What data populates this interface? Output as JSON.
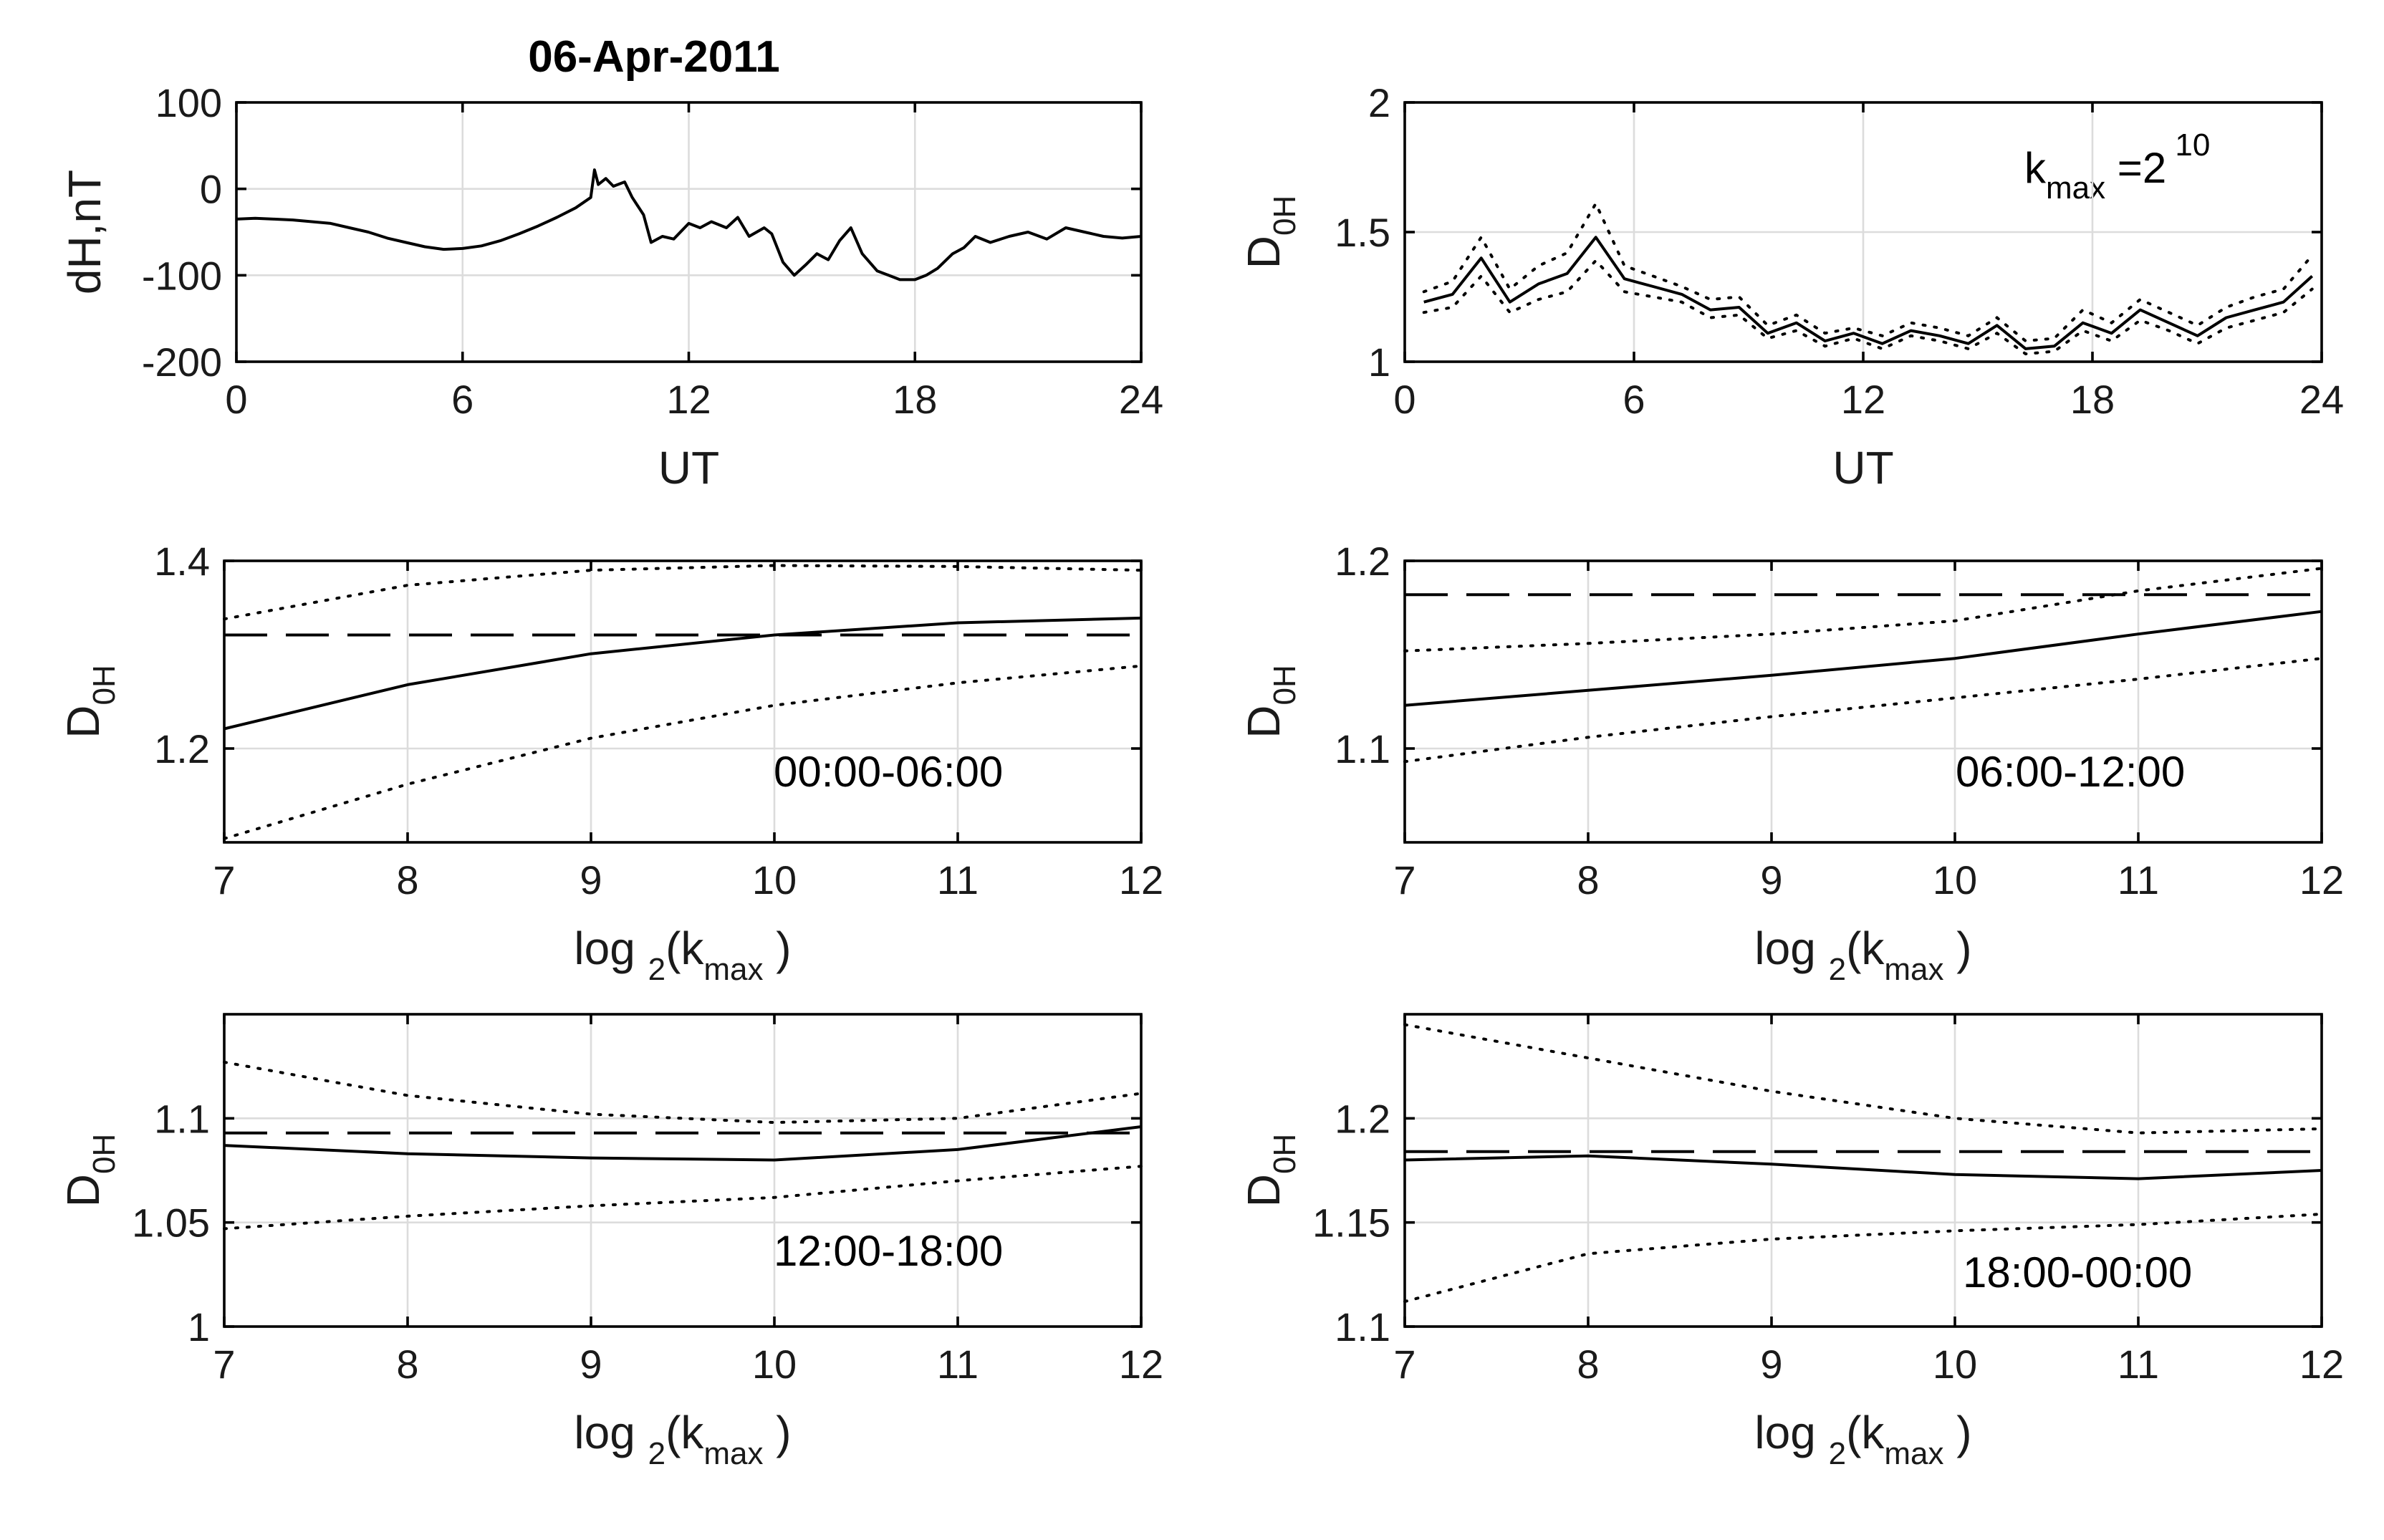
{
  "figure_title": "06-Apr-2011",
  "chart_data": [
    {
      "id": "p1",
      "type": "line",
      "title": "06-Apr-2011",
      "xlabel": "UT",
      "ylabel": "dH,nT",
      "xlim": [
        0,
        24
      ],
      "ylim": [
        -200,
        100
      ],
      "xticks": [
        0,
        6,
        12,
        18,
        24
      ],
      "yticks": [
        -200,
        -100,
        0,
        100
      ],
      "grid": true,
      "series": [
        {
          "name": "dH",
          "style": "solid",
          "x": [
            0,
            0.5,
            1,
            1.5,
            2,
            2.5,
            3,
            3.5,
            4,
            4.5,
            5,
            5.5,
            6,
            6.5,
            7,
            7.5,
            8,
            8.5,
            9,
            9.4,
            9.5,
            9.6,
            9.8,
            10,
            10.3,
            10.5,
            10.8,
            11,
            11.3,
            11.6,
            12,
            12.3,
            12.6,
            13,
            13.3,
            13.6,
            14,
            14.2,
            14.5,
            14.8,
            15.1,
            15.4,
            15.7,
            16,
            16.3,
            16.6,
            17,
            17.3,
            17.6,
            18,
            18.3,
            18.6,
            19,
            19.3,
            19.6,
            20,
            20.5,
            21,
            21.5,
            22,
            22.5,
            23,
            23.5,
            24
          ],
          "y": [
            -35,
            -34,
            -35,
            -36,
            -38,
            -40,
            -45,
            -50,
            -57,
            -62,
            -67,
            -70,
            -69,
            -66,
            -60,
            -52,
            -43,
            -33,
            -22,
            -10,
            22,
            5,
            12,
            3,
            8,
            -10,
            -30,
            -62,
            -55,
            -58,
            -40,
            -45,
            -38,
            -45,
            -33,
            -55,
            -45,
            -52,
            -85,
            -100,
            -88,
            -75,
            -82,
            -60,
            -45,
            -75,
            -95,
            -100,
            -105,
            -105,
            -100,
            -92,
            -75,
            -68,
            -55,
            -62,
            -55,
            -50,
            -58,
            -45,
            -50,
            -55,
            -57,
            -55
          ]
        }
      ]
    },
    {
      "id": "p2",
      "type": "line",
      "xlabel": "UT",
      "ylabel": "D0H",
      "annotation": "kmax =2 10",
      "xlim": [
        0,
        24
      ],
      "ylim": [
        1,
        2
      ],
      "xticks": [
        0,
        6,
        12,
        18,
        24
      ],
      "yticks": [
        1,
        1.5,
        2
      ],
      "grid": true,
      "series": [
        {
          "name": "D0H",
          "style": "solid",
          "x": [
            0.5,
            1.25,
            2,
            2.75,
            3.5,
            4.25,
            5,
            5.75,
            6.5,
            7.25,
            8,
            8.75,
            9.5,
            10.25,
            11,
            11.75,
            12.5,
            13.25,
            14,
            14.75,
            15.5,
            16.25,
            17,
            17.75,
            18.5,
            19.25,
            20,
            20.75,
            21.5,
            22.25,
            23,
            23.75
          ],
          "y": [
            1.23,
            1.26,
            1.4,
            1.23,
            1.3,
            1.34,
            1.48,
            1.32,
            1.29,
            1.26,
            1.2,
            1.21,
            1.11,
            1.15,
            1.08,
            1.11,
            1.07,
            1.12,
            1.1,
            1.07,
            1.14,
            1.05,
            1.06,
            1.15,
            1.11,
            1.2,
            1.15,
            1.1,
            1.17,
            1.2,
            1.23,
            1.33
          ]
        },
        {
          "name": "upper",
          "style": "dotted",
          "x": [
            0.5,
            1.25,
            2,
            2.75,
            3.5,
            4.25,
            5,
            5.75,
            6.5,
            7.25,
            8,
            8.75,
            9.5,
            10.25,
            11,
            11.75,
            12.5,
            13.25,
            14,
            14.75,
            15.5,
            16.25,
            17,
            17.75,
            18.5,
            19.25,
            20,
            20.75,
            21.5,
            22.25,
            23,
            23.75
          ],
          "y": [
            1.27,
            1.31,
            1.48,
            1.28,
            1.37,
            1.42,
            1.61,
            1.37,
            1.33,
            1.29,
            1.24,
            1.25,
            1.14,
            1.18,
            1.11,
            1.13,
            1.1,
            1.15,
            1.13,
            1.1,
            1.17,
            1.08,
            1.09,
            1.2,
            1.15,
            1.24,
            1.19,
            1.14,
            1.21,
            1.25,
            1.28,
            1.41
          ]
        },
        {
          "name": "lower",
          "style": "dotted",
          "x": [
            0.5,
            1.25,
            2,
            2.75,
            3.5,
            4.25,
            5,
            5.75,
            6.5,
            7.25,
            8,
            8.75,
            9.5,
            10.25,
            11,
            11.75,
            12.5,
            13.25,
            14,
            14.75,
            15.5,
            16.25,
            17,
            17.75,
            18.5,
            19.25,
            20,
            20.75,
            21.5,
            22.25,
            23,
            23.75
          ],
          "y": [
            1.19,
            1.21,
            1.33,
            1.19,
            1.24,
            1.27,
            1.39,
            1.27,
            1.25,
            1.23,
            1.17,
            1.18,
            1.09,
            1.12,
            1.06,
            1.09,
            1.05,
            1.1,
            1.08,
            1.05,
            1.11,
            1.03,
            1.04,
            1.12,
            1.08,
            1.16,
            1.12,
            1.07,
            1.13,
            1.16,
            1.19,
            1.28
          ]
        }
      ]
    },
    {
      "id": "p3",
      "type": "line",
      "xlabel": "log2(kmax )",
      "ylabel": "D0H",
      "annotation": "00:00-06:00",
      "xlim": [
        7,
        12
      ],
      "ylim": [
        1.1,
        1.4
      ],
      "xticks": [
        7,
        8,
        9,
        10,
        11,
        12
      ],
      "yticks": [
        1.2,
        1.4
      ],
      "grid": true,
      "series": [
        {
          "name": "D0H",
          "style": "solid",
          "x": [
            7,
            8,
            9,
            10,
            11,
            12
          ],
          "y": [
            1.221,
            1.268,
            1.301,
            1.321,
            1.334,
            1.339
          ]
        },
        {
          "name": "upper",
          "style": "dotted",
          "x": [
            7,
            8,
            9,
            10,
            11,
            12
          ],
          "y": [
            1.338,
            1.374,
            1.39,
            1.395,
            1.394,
            1.39
          ]
        },
        {
          "name": "lower",
          "style": "dotted",
          "x": [
            7,
            8,
            9,
            10,
            11,
            12
          ],
          "y": [
            1.104,
            1.162,
            1.211,
            1.246,
            1.27,
            1.288
          ]
        },
        {
          "name": "reference",
          "style": "dashed",
          "x": [
            7,
            12
          ],
          "y": [
            1.321,
            1.321
          ]
        }
      ]
    },
    {
      "id": "p4",
      "type": "line",
      "xlabel": "log2(kmax )",
      "ylabel": "D0H",
      "annotation": "06:00-12:00",
      "xlim": [
        7,
        12
      ],
      "ylim": [
        1.05,
        1.2
      ],
      "xticks": [
        7,
        8,
        9,
        10,
        11,
        12
      ],
      "yticks": [
        1.1,
        1.2
      ],
      "grid": true,
      "series": [
        {
          "name": "D0H",
          "style": "solid",
          "x": [
            7,
            8,
            9,
            10,
            11,
            12
          ],
          "y": [
            1.123,
            1.131,
            1.139,
            1.148,
            1.161,
            1.173
          ]
        },
        {
          "name": "upper",
          "style": "dotted",
          "x": [
            7,
            8,
            9,
            10,
            11,
            12
          ],
          "y": [
            1.152,
            1.156,
            1.161,
            1.168,
            1.184,
            1.196
          ]
        },
        {
          "name": "lower",
          "style": "dotted",
          "x": [
            7,
            8,
            9,
            10,
            11,
            12
          ],
          "y": [
            1.093,
            1.106,
            1.117,
            1.127,
            1.137,
            1.148
          ]
        },
        {
          "name": "reference",
          "style": "dashed",
          "x": [
            7,
            12
          ],
          "y": [
            1.182,
            1.182
          ]
        }
      ]
    },
    {
      "id": "p5",
      "type": "line",
      "xlabel": "log2(kmax )",
      "ylabel": "D0H",
      "annotation": "12:00-18:00",
      "xlim": [
        7,
        12
      ],
      "ylim": [
        1,
        1.15
      ],
      "xticks": [
        7,
        8,
        9,
        10,
        11,
        12
      ],
      "yticks": [
        1,
        1.05,
        1.1
      ],
      "grid": true,
      "series": [
        {
          "name": "D0H",
          "style": "solid",
          "x": [
            7,
            8,
            9,
            10,
            11,
            12
          ],
          "y": [
            1.087,
            1.083,
            1.081,
            1.08,
            1.085,
            1.096
          ]
        },
        {
          "name": "upper",
          "style": "dotted",
          "x": [
            7,
            8,
            9,
            10,
            11,
            12
          ],
          "y": [
            1.127,
            1.111,
            1.102,
            1.098,
            1.1,
            1.112
          ]
        },
        {
          "name": "lower",
          "style": "dotted",
          "x": [
            7,
            8,
            9,
            10,
            11,
            12
          ],
          "y": [
            1.047,
            1.053,
            1.058,
            1.062,
            1.07,
            1.077
          ]
        },
        {
          "name": "reference",
          "style": "dashed",
          "x": [
            7,
            12
          ],
          "y": [
            1.093,
            1.093
          ]
        }
      ]
    },
    {
      "id": "p6",
      "type": "line",
      "xlabel": "log2(kmax )",
      "ylabel": "D0H",
      "annotation": "18:00-00:00",
      "xlim": [
        7,
        12
      ],
      "ylim": [
        1.1,
        1.25
      ],
      "xticks": [
        7,
        8,
        9,
        10,
        11,
        12
      ],
      "yticks": [
        1.1,
        1.15,
        1.2
      ],
      "grid": true,
      "series": [
        {
          "name": "D0H",
          "style": "solid",
          "x": [
            7,
            8,
            9,
            10,
            11,
            12
          ],
          "y": [
            1.18,
            1.182,
            1.178,
            1.173,
            1.171,
            1.175
          ]
        },
        {
          "name": "upper",
          "style": "dotted",
          "x": [
            7,
            8,
            9,
            10,
            11,
            12
          ],
          "y": [
            1.245,
            1.229,
            1.213,
            1.2,
            1.193,
            1.195
          ]
        },
        {
          "name": "lower",
          "style": "dotted",
          "x": [
            7,
            8,
            9,
            10,
            11,
            12
          ],
          "y": [
            1.112,
            1.135,
            1.142,
            1.146,
            1.149,
            1.154
          ]
        },
        {
          "name": "reference",
          "style": "dashed",
          "x": [
            7,
            12
          ],
          "y": [
            1.184,
            1.184
          ]
        }
      ]
    }
  ]
}
